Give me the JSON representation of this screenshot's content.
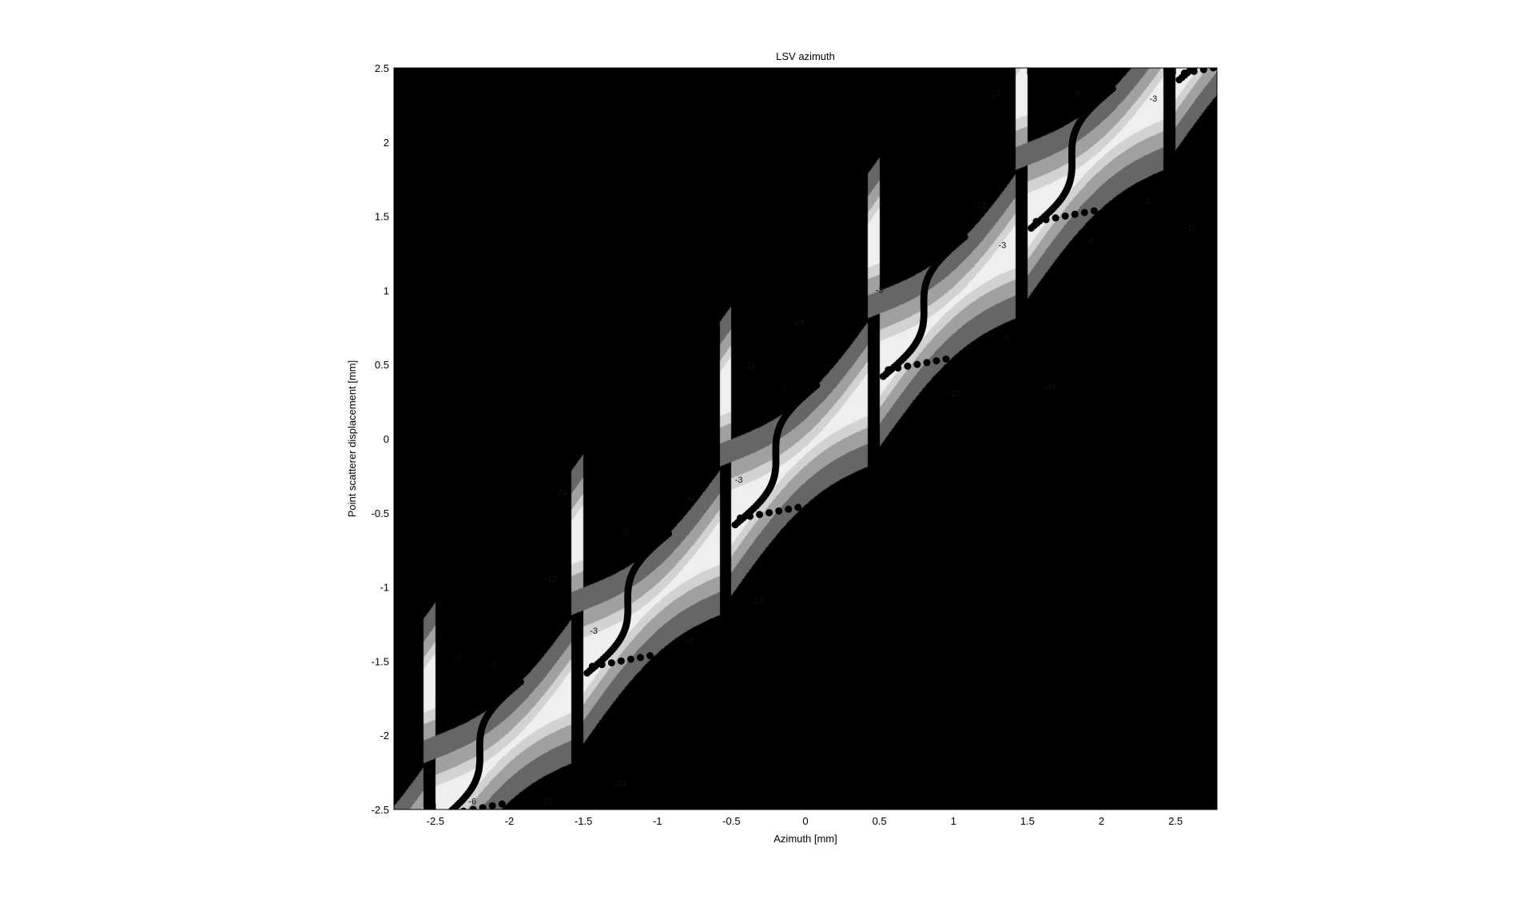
{
  "chart_data": {
    "type": "contour",
    "title": "LSV azimuth",
    "xlabel": "Azimuth [mm]",
    "ylabel": "Point scatterer displacement [mm]",
    "xlim": [
      -2.78,
      2.78
    ],
    "ylim": [
      -2.5,
      2.5
    ],
    "x_ticks": [
      -2.5,
      -2,
      -1.5,
      -1,
      -0.5,
      0,
      0.5,
      1,
      1.5,
      2,
      2.5
    ],
    "y_ticks": [
      -2.5,
      -2,
      -1.5,
      -1,
      -0.5,
      0,
      0.5,
      1,
      1.5,
      2,
      2.5
    ],
    "contour_levels_db": [
      -24,
      -12,
      -6,
      -3
    ],
    "level_colors": [
      "#000000",
      "#666666",
      "#a0a0a0",
      "#d2d2d2",
      "#efefef"
    ],
    "contour_labels": [
      {
        "text": "-3",
        "x": -2.12,
        "y": -1.53
      },
      {
        "text": "-3",
        "x": -2.55,
        "y": -2.25
      },
      {
        "text": "-6",
        "x": -2.35,
        "y": -1.48
      },
      {
        "text": "-6",
        "x": -2.25,
        "y": -2.45
      },
      {
        "text": "-12",
        "x": -1.75,
        "y": -2.45
      },
      {
        "text": "-24",
        "x": -1.25,
        "y": -2.33
      },
      {
        "text": "-3",
        "x": -1.22,
        "y": -0.63
      },
      {
        "text": "-3",
        "x": -1.43,
        "y": -1.3
      },
      {
        "text": "-6",
        "x": -0.78,
        "y": -0.41
      },
      {
        "text": "-6",
        "x": -0.78,
        "y": -1.37
      },
      {
        "text": "-12",
        "x": -1.72,
        "y": -0.95
      },
      {
        "text": "-12",
        "x": -0.32,
        "y": -1.1
      },
      {
        "text": "-24",
        "x": -1.65,
        "y": -0.37
      },
      {
        "text": "-3",
        "x": -0.45,
        "y": -0.28
      },
      {
        "text": "-3",
        "x": -0.15,
        "y": 0.33
      },
      {
        "text": "-6",
        "x": 0.58,
        "y": 0.02
      },
      {
        "text": "-12",
        "x": -0.38,
        "y": 0.49
      },
      {
        "text": "-12",
        "x": 1.0,
        "y": 0.3
      },
      {
        "text": "-24",
        "x": -0.05,
        "y": 0.78
      },
      {
        "text": "-24",
        "x": 1.65,
        "y": 0.35
      },
      {
        "text": "-3",
        "x": 0.5,
        "y": 1.0
      },
      {
        "text": "-3",
        "x": 1.33,
        "y": 1.3
      },
      {
        "text": "-3",
        "x": 1.35,
        "y": 0.68
      },
      {
        "text": "-6",
        "x": 1.92,
        "y": 1.33
      },
      {
        "text": "-6",
        "x": 1.83,
        "y": 2.32
      },
      {
        "text": "-12",
        "x": 1.18,
        "y": 1.57
      },
      {
        "text": "-12",
        "x": 2.6,
        "y": 1.42
      },
      {
        "text": "-24",
        "x": 1.28,
        "y": 2.32
      },
      {
        "text": "-3",
        "x": 2.35,
        "y": 2.29
      },
      {
        "text": "-3",
        "x": 2.3,
        "y": 1.6
      }
    ],
    "series": [
      {
        "type": "scatter",
        "marker": "filled-circle",
        "color": "#000000"
      }
    ]
  }
}
